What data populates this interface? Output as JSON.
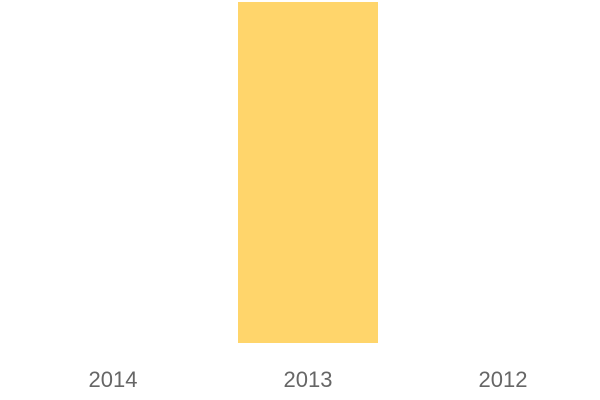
{
  "chart_data": {
    "type": "bar",
    "categories": [
      "2014",
      "2013",
      "2012"
    ],
    "values": [
      0,
      1,
      0
    ],
    "ylim": [
      0,
      1
    ],
    "title": "",
    "xlabel": "",
    "ylabel": "",
    "grid": false,
    "bar_color": "#FFD56B",
    "tick_color": "#666666"
  }
}
